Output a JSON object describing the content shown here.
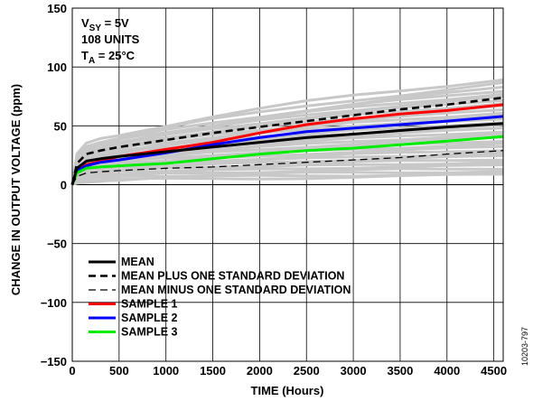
{
  "chart_data": {
    "type": "line",
    "xlabel": "TIME (Hours)",
    "ylabel": "CHANGE IN OUTPUT VOLTAGE (ppm)",
    "xlim": [
      0,
      4600
    ],
    "ylim": [
      -150,
      150
    ],
    "x_ticks": [
      "0",
      "500",
      "1000",
      "1500",
      "2000",
      "2500",
      "3000",
      "3500",
      "4000",
      "4500"
    ],
    "x_tick_values": [
      0,
      500,
      1000,
      1500,
      2000,
      2500,
      3000,
      3500,
      4000,
      4500
    ],
    "y_ticks": [
      "150",
      "100",
      "50",
      "0",
      "−50",
      "−100",
      "−150"
    ],
    "y_tick_values": [
      150,
      100,
      50,
      0,
      -50,
      -100,
      -150
    ],
    "grid": true,
    "legend_position": "lower-left",
    "annotation": {
      "line1_main": "V",
      "line1_sub": "SY",
      "line1_rest": " = 5V",
      "line2": "108 UNITS",
      "line3_main": "T",
      "line3_sub": "A",
      "line3_rest": " = 25°C"
    },
    "figure_id": "10203-797",
    "x": [
      0,
      50,
      150,
      300,
      500,
      750,
      1000,
      1500,
      2000,
      2500,
      3000,
      3500,
      4000,
      4600
    ],
    "series": [
      {
        "name": "MEAN",
        "color": "#000000",
        "style": "solid",
        "values": [
          0,
          14,
          20,
          22,
          24,
          26,
          28,
          32,
          36,
          40,
          43,
          46,
          49,
          52
        ]
      },
      {
        "name": "MEAN PLUS ONE STANDARD DEVIATION",
        "color": "#000000",
        "style": "dashed",
        "values": [
          0,
          18,
          26,
          29,
          32,
          35,
          38,
          44,
          49,
          54,
          59,
          64,
          68,
          74
        ]
      },
      {
        "name": "MEAN MINUS ONE STANDARD DEVIATION",
        "color": "#000000",
        "style": "dashed-thin",
        "values": [
          0,
          7,
          10,
          11,
          12,
          13,
          14,
          15,
          17,
          19,
          21,
          23,
          26,
          29
        ]
      },
      {
        "name": "SAMPLE 1",
        "color": "#ff0000",
        "style": "solid",
        "values": [
          0,
          12,
          17,
          20,
          24,
          27,
          30,
          36,
          44,
          51,
          56,
          60,
          63,
          68
        ]
      },
      {
        "name": "SAMPLE 2",
        "color": "#0000ff",
        "style": "solid",
        "values": [
          0,
          12,
          16,
          19,
          21,
          24,
          27,
          34,
          40,
          45,
          48,
          51,
          54,
          58
        ]
      },
      {
        "name": "SAMPLE 3",
        "color": "#00ee00",
        "style": "solid",
        "values": [
          0,
          10,
          14,
          15,
          16,
          17,
          18,
          22,
          26,
          29,
          31,
          34,
          37,
          41
        ]
      }
    ],
    "background_units": {
      "color": "#c8c8c8",
      "count": 108,
      "endpoints_at_4600": [
        90,
        86,
        82,
        80,
        78,
        76,
        74,
        72,
        70,
        68,
        66,
        64,
        62,
        60,
        58,
        56,
        54,
        52,
        50,
        48,
        46,
        44,
        42,
        40,
        38,
        36,
        34,
        32,
        30,
        28,
        26,
        24,
        22,
        20,
        18,
        16,
        14,
        12,
        10,
        8
      ]
    }
  }
}
